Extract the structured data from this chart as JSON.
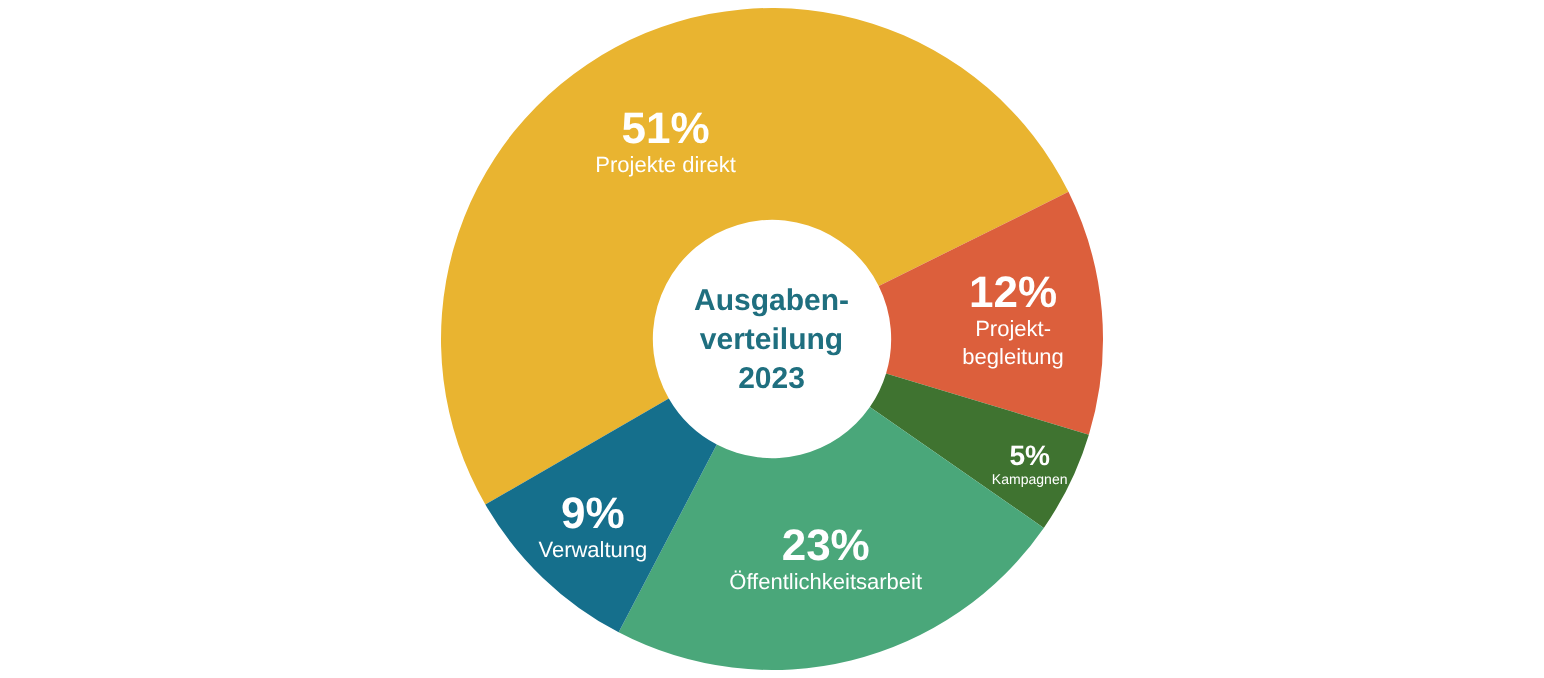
{
  "chart_data": {
    "type": "donut",
    "title": "Ausgaben-\nverteilung\n2023",
    "categories": [
      "Projekte direkt",
      "Projekt-\nbegleitung",
      "Kampagnen",
      "Öffentlichkeitsarbeit",
      "Verwaltung"
    ],
    "values": [
      51,
      12,
      5,
      23,
      9
    ],
    "value_labels": [
      "51%",
      "12%",
      "5%",
      "23%",
      "9%"
    ],
    "colors": [
      "#e9b430",
      "#dc5f3c",
      "#3f7330",
      "#4aa77a",
      "#156f8c"
    ],
    "legend": false
  }
}
